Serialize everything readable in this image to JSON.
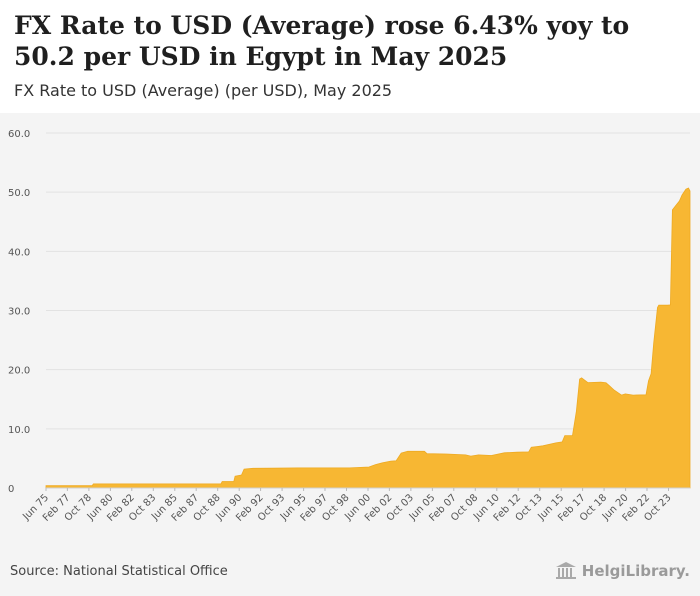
{
  "header": {
    "title": "FX Rate to USD (Average) rose 6.43% yoy to 50.2 per USD in Egypt in May 2025",
    "subtitle": "FX Rate to USD (Average) (per USD), May 2025"
  },
  "footer": {
    "source": "Source: National Statistical Office",
    "logo_text": "HelgiLibrary."
  },
  "colors": {
    "fill": "#f7b733",
    "stroke": "#eeaa22",
    "grid": "#e2e2e2",
    "text": "#555555"
  },
  "chart_data": {
    "type": "area",
    "title": "FX Rate to USD (Average) (per USD), May 2025",
    "xlabel": "",
    "ylabel": "",
    "ylim": [
      0,
      60
    ],
    "yticks": [
      0,
      10,
      20,
      30,
      40,
      50,
      60
    ],
    "ytick_labels": [
      "0",
      "10.0",
      "20.0",
      "30.0",
      "40.0",
      "50.0",
      "60.0"
    ],
    "xlim": [
      1975.42,
      2025.42
    ],
    "xticks": [
      {
        "label": "Jun 75",
        "x": 1975.42
      },
      {
        "label": "Feb 77",
        "x": 1977.08
      },
      {
        "label": "Oct 78",
        "x": 1978.75
      },
      {
        "label": "Jun 80",
        "x": 1980.42
      },
      {
        "label": "Feb 82",
        "x": 1982.08
      },
      {
        "label": "Oct 83",
        "x": 1983.75
      },
      {
        "label": "Jun 85",
        "x": 1985.42
      },
      {
        "label": "Feb 87",
        "x": 1987.08
      },
      {
        "label": "Oct 88",
        "x": 1988.75
      },
      {
        "label": "Jun 90",
        "x": 1990.42
      },
      {
        "label": "Feb 92",
        "x": 1992.08
      },
      {
        "label": "Oct 93",
        "x": 1993.75
      },
      {
        "label": "Jun 95",
        "x": 1995.42
      },
      {
        "label": "Feb 97",
        "x": 1997.08
      },
      {
        "label": "Oct 98",
        "x": 1998.75
      },
      {
        "label": "Jun 00",
        "x": 2000.42
      },
      {
        "label": "Feb 02",
        "x": 2002.08
      },
      {
        "label": "Oct 03",
        "x": 2003.75
      },
      {
        "label": "Jun 05",
        "x": 2005.42
      },
      {
        "label": "Feb 07",
        "x": 2007.08
      },
      {
        "label": "Oct 08",
        "x": 2008.75
      },
      {
        "label": "Jun 10",
        "x": 2010.42
      },
      {
        "label": "Feb 12",
        "x": 2012.08
      },
      {
        "label": "Oct 13",
        "x": 2013.75
      },
      {
        "label": "Jun 15",
        "x": 2015.42
      },
      {
        "label": "Feb 17",
        "x": 2017.08
      },
      {
        "label": "Oct 18",
        "x": 2018.75
      },
      {
        "label": "Jun 20",
        "x": 2020.42
      },
      {
        "label": "Feb 22",
        "x": 2022.08
      },
      {
        "label": "Oct 23",
        "x": 2023.75
      }
    ],
    "series": [
      {
        "name": "FX Rate to USD (Average)",
        "points": [
          [
            1975.42,
            0.39
          ],
          [
            1979.0,
            0.39
          ],
          [
            1979.1,
            0.7
          ],
          [
            1985.0,
            0.7
          ],
          [
            1987.0,
            0.7
          ],
          [
            1987.1,
            0.7
          ],
          [
            1989.0,
            0.7
          ],
          [
            1989.1,
            1.1
          ],
          [
            1990.0,
            1.1
          ],
          [
            1990.1,
            2.0
          ],
          [
            1990.6,
            2.2
          ],
          [
            1990.8,
            3.2
          ],
          [
            1991.5,
            3.33
          ],
          [
            1993.0,
            3.35
          ],
          [
            1995.0,
            3.39
          ],
          [
            1999.0,
            3.4
          ],
          [
            2000.5,
            3.55
          ],
          [
            2001.0,
            3.95
          ],
          [
            2001.6,
            4.3
          ],
          [
            2002.2,
            4.55
          ],
          [
            2002.6,
            4.6
          ],
          [
            2003.0,
            5.9
          ],
          [
            2003.5,
            6.2
          ],
          [
            2004.8,
            6.2
          ],
          [
            2005.0,
            5.8
          ],
          [
            2006.5,
            5.75
          ],
          [
            2008.0,
            5.6
          ],
          [
            2008.4,
            5.4
          ],
          [
            2009.0,
            5.6
          ],
          [
            2010.0,
            5.5
          ],
          [
            2011.0,
            5.95
          ],
          [
            2012.0,
            6.05
          ],
          [
            2012.9,
            6.1
          ],
          [
            2013.1,
            6.9
          ],
          [
            2013.5,
            7.0
          ],
          [
            2014.0,
            7.14
          ],
          [
            2015.0,
            7.63
          ],
          [
            2015.5,
            7.8
          ],
          [
            2015.7,
            8.85
          ],
          [
            2016.3,
            8.88
          ],
          [
            2016.6,
            13.0
          ],
          [
            2016.85,
            18.4
          ],
          [
            2017.0,
            18.6
          ],
          [
            2017.5,
            17.8
          ],
          [
            2018.0,
            17.85
          ],
          [
            2018.5,
            17.9
          ],
          [
            2018.9,
            17.8
          ],
          [
            2019.2,
            17.2
          ],
          [
            2019.5,
            16.6
          ],
          [
            2019.9,
            16.0
          ],
          [
            2020.1,
            15.7
          ],
          [
            2020.4,
            15.9
          ],
          [
            2021.0,
            15.7
          ],
          [
            2022.0,
            15.75
          ],
          [
            2022.2,
            18.1
          ],
          [
            2022.4,
            19.3
          ],
          [
            2022.6,
            24.5
          ],
          [
            2022.9,
            30.5
          ],
          [
            2023.0,
            30.9
          ],
          [
            2023.7,
            30.9
          ],
          [
            2023.9,
            30.95
          ],
          [
            2024.05,
            47.0
          ],
          [
            2024.3,
            47.7
          ],
          [
            2024.6,
            48.5
          ],
          [
            2024.8,
            49.5
          ],
          [
            2025.1,
            50.5
          ],
          [
            2025.3,
            50.7
          ],
          [
            2025.42,
            50.2
          ]
        ]
      }
    ]
  }
}
